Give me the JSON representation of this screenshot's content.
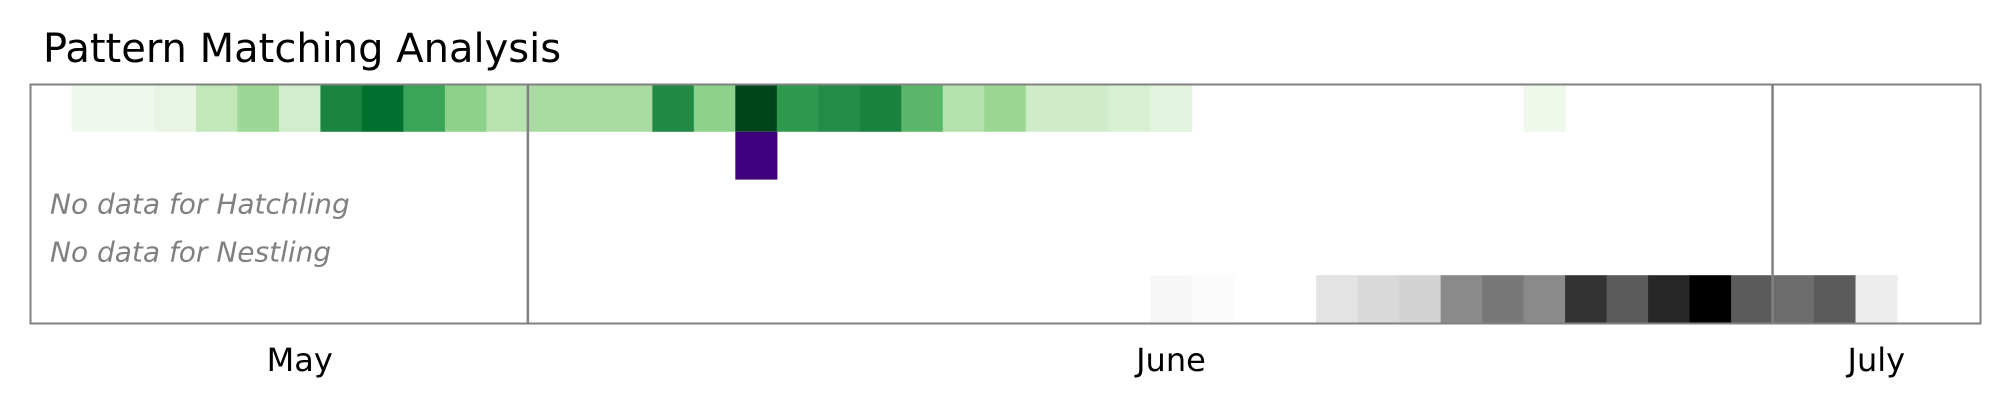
{
  "chart_data": {
    "type": "heatmap",
    "title": "Pattern Matching Analysis",
    "x_axis": {
      "unit": "day-of-season",
      "range": [
        0,
        47
      ],
      "tick_labels": [
        {
          "label": "May",
          "day": 6
        },
        {
          "label": "June",
          "day": 27
        },
        {
          "label": "July",
          "day": 44
        }
      ],
      "month_boundaries": [
        12,
        42
      ]
    },
    "rows": [
      {
        "cells": [
          {
            "day": 1,
            "color": "#eff8ec"
          },
          {
            "day": 2,
            "color": "#eff8ec"
          },
          {
            "day": 3,
            "color": "#e8f5e4"
          },
          {
            "day": 4,
            "color": "#c2e7bb"
          },
          {
            "day": 5,
            "color": "#9dd795"
          },
          {
            "day": 6,
            "color": "#d1edcb"
          },
          {
            "day": 7,
            "color": "#1b8540"
          },
          {
            "day": 8,
            "color": "#00702e"
          },
          {
            "day": 9,
            "color": "#3ca458"
          },
          {
            "day": 10,
            "color": "#8ed18a"
          },
          {
            "day": 11,
            "color": "#b8e3b1"
          },
          {
            "day": 12,
            "color": "#a9dba3"
          },
          {
            "day": 13,
            "color": "#a9dba3"
          },
          {
            "day": 14,
            "color": "#a9dba3"
          },
          {
            "day": 15,
            "color": "#228a45"
          },
          {
            "day": 16,
            "color": "#8ed18a"
          },
          {
            "day": 17,
            "color": "#00441b"
          },
          {
            "day": 18,
            "color": "#2f9a4f"
          },
          {
            "day": 19,
            "color": "#248c46"
          },
          {
            "day": 20,
            "color": "#19823e"
          },
          {
            "day": 21,
            "color": "#5ab769"
          },
          {
            "day": 22,
            "color": "#b5e1ae"
          },
          {
            "day": 23,
            "color": "#9cd693"
          },
          {
            "day": 24,
            "color": "#cfecc9"
          },
          {
            "day": 25,
            "color": "#cfecc9"
          },
          {
            "day": 26,
            "color": "#d8f0d2"
          },
          {
            "day": 27,
            "color": "#e3f4de"
          },
          {
            "day": 36,
            "color": "#eef8eb"
          }
        ]
      },
      {
        "cells": [
          {
            "day": 17,
            "color": "#3f007d"
          }
        ]
      },
      {
        "message": "No data for Hatchling",
        "cells": []
      },
      {
        "message": "No data for Nestling",
        "cells": []
      },
      {
        "cells": [
          {
            "day": 27,
            "color": "#f6f6f6"
          },
          {
            "day": 28,
            "color": "#fbfbfb"
          },
          {
            "day": 31,
            "color": "#e3e3e3"
          },
          {
            "day": 32,
            "color": "#d9d9d9"
          },
          {
            "day": 33,
            "color": "#d3d3d3"
          },
          {
            "day": 34,
            "color": "#8a8a8a"
          },
          {
            "day": 35,
            "color": "#777777"
          },
          {
            "day": 36,
            "color": "#8a8a8a"
          },
          {
            "day": 37,
            "color": "#333333"
          },
          {
            "day": 38,
            "color": "#5b5b5b"
          },
          {
            "day": 39,
            "color": "#272727"
          },
          {
            "day": 40,
            "color": "#000000"
          },
          {
            "day": 41,
            "color": "#5b5b5b"
          },
          {
            "day": 42,
            "color": "#6c6c6c"
          },
          {
            "day": 43,
            "color": "#5b5b5b"
          },
          {
            "day": 44,
            "color": "#ededed"
          }
        ]
      }
    ],
    "colors": {
      "frame": "#808080",
      "no_data_text": "#808080"
    }
  }
}
